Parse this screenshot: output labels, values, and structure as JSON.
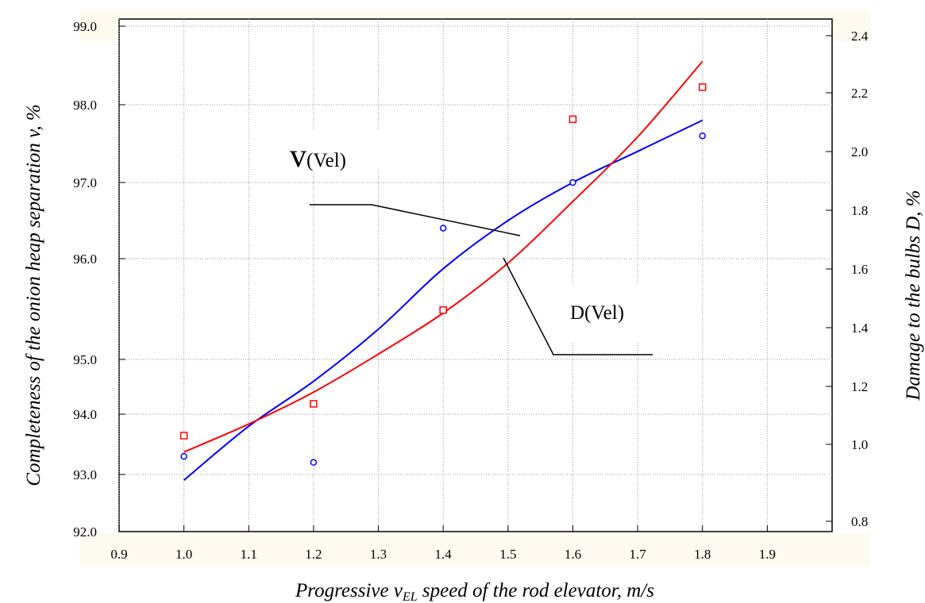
{
  "chart_data": {
    "type": "scatter",
    "xlabel": "Progressive v",
    "xlabel_sub": "EL",
    "xlabel_rest": " speed of the rod elevator, m/s",
    "ylabel_left": "Completeness of the onion heap separation v, %",
    "ylabel_right": "Damage to the bulbs D, %",
    "x_ticks": [
      "0.9",
      "1.0",
      "1.1",
      "1.2",
      "1.3",
      "1.4",
      "1.5",
      "1.6",
      "1.7",
      "1.8",
      "1.9"
    ],
    "x_tick_values": [
      0.9,
      1.0,
      1.1,
      1.2,
      1.3,
      1.4,
      1.5,
      1.6,
      1.7,
      1.8,
      1.9
    ],
    "xlim": [
      0.9,
      2.0
    ],
    "y_left_ticks": [
      "92.0",
      "93.0",
      "94.0",
      "95.0",
      "96.0",
      "97.0",
      "98.0",
      "99.0"
    ],
    "y_left_tick_values": [
      92.0,
      93.0,
      94.0,
      95.0,
      96.0,
      97.0,
      98.0,
      99.0
    ],
    "y_left_ticks_spacing": "uneven",
    "y_right_ticks": [
      "0.8",
      "1.0",
      "1.2",
      "1.4",
      "1.6",
      "1.8",
      "2.0",
      "2.2",
      "2.4"
    ],
    "y_right_tick_values": [
      0.8,
      1.0,
      1.2,
      1.4,
      1.6,
      1.8,
      2.0,
      2.2,
      2.4
    ],
    "ylim_right": [
      0.75,
      2.45
    ],
    "grid": "dotted",
    "series": [
      {
        "name": "v(Vel)",
        "axis": "left",
        "color": "#0000ff",
        "marker": "circle",
        "points": [
          [
            1.0,
            93.3
          ],
          [
            1.2,
            93.2
          ],
          [
            1.4,
            96.4
          ],
          [
            1.6,
            97.0
          ],
          [
            1.8,
            97.6
          ]
        ],
        "fit": [
          [
            1.0,
            92.9
          ],
          [
            1.1,
            93.8
          ],
          [
            1.2,
            94.6
          ],
          [
            1.3,
            95.3
          ],
          [
            1.4,
            95.9
          ],
          [
            1.5,
            96.5
          ],
          [
            1.6,
            97.0
          ],
          [
            1.7,
            97.4
          ],
          [
            1.8,
            97.8
          ]
        ]
      },
      {
        "name": "D(Vel)",
        "axis": "right",
        "color": "#ff0000",
        "marker": "square",
        "points": [
          [
            1.0,
            1.03
          ],
          [
            1.2,
            1.14
          ],
          [
            1.4,
            1.46
          ],
          [
            1.6,
            2.11
          ],
          [
            1.8,
            2.22
          ]
        ],
        "fit": [
          [
            1.0,
            0.98
          ],
          [
            1.1,
            1.07
          ],
          [
            1.2,
            1.18
          ],
          [
            1.3,
            1.31
          ],
          [
            1.4,
            1.45
          ],
          [
            1.5,
            1.62
          ],
          [
            1.6,
            1.83
          ],
          [
            1.7,
            2.05
          ],
          [
            1.8,
            2.31
          ]
        ]
      }
    ],
    "annotations": [
      {
        "symbol": "v",
        "text": "(Vel)",
        "target": "v(Vel)"
      },
      {
        "symbol": "",
        "text": "D(Vel)",
        "target": "D(Vel)"
      }
    ]
  }
}
